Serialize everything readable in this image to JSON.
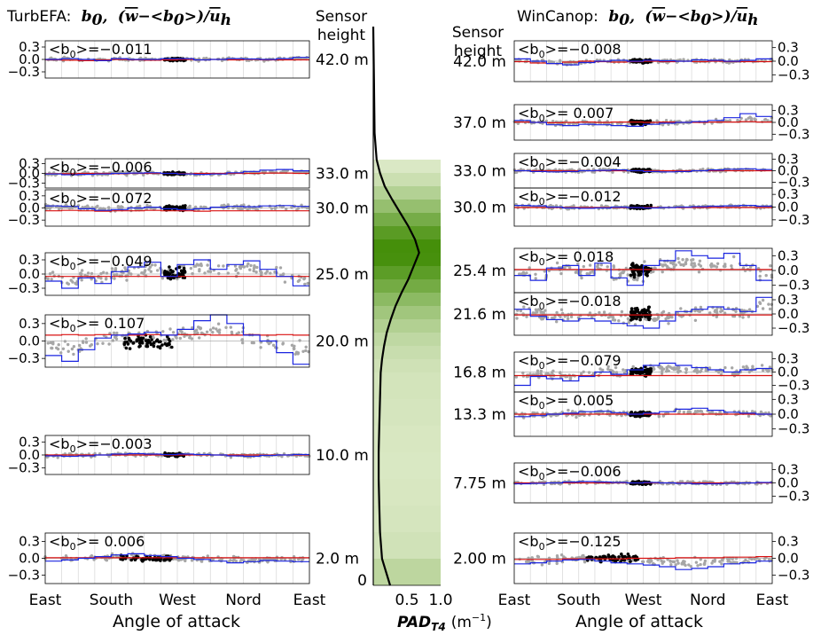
{
  "left_title": {
    "name": "TurbEFA:",
    "symbol": "b",
    "symbol_sub": "0",
    "sep": ",",
    "expr_open": "(",
    "expr_w": "w",
    "expr_mid": "−<b",
    "expr_sub0": "0",
    "expr_close": ">)/",
    "expr_u": "u",
    "expr_subh": "h"
  },
  "right_title": {
    "name": "WinCanop:",
    "symbol": "b",
    "symbol_sub": "0",
    "sep": ",",
    "expr_open": "(",
    "expr_w": "w",
    "expr_mid": "−<b",
    "expr_sub0": "0",
    "expr_close": ">)/",
    "expr_u": "u",
    "expr_subh": "h"
  },
  "sensor_label": {
    "line1": "Sensor",
    "line2": "height"
  },
  "x_axis": {
    "label": "Angle of attack",
    "tick_labels": [
      "East",
      "South",
      "West",
      "Nord",
      "East"
    ]
  },
  "center_axis": {
    "xlabel_main": "PAD",
    "xlabel_sub": "T4",
    "xlabel_unit": "(m",
    "xlabel_unit_sup": "−1",
    "xlabel_unit_close": ")",
    "tick_labels": [
      "0.5",
      "1.0"
    ],
    "zero_label": "0"
  },
  "colors": {
    "scatter_grey": "#a6a6a6",
    "scatter_black": "#000000",
    "mean_line_blue": "#1a24e0",
    "mean_line_red": "#d91010",
    "pad_profile": "#000000",
    "pad_green_dark": "#3d8a00",
    "pad_green_light": "#eef4dd"
  },
  "chart_data": [
    {
      "type": "scatter",
      "title": "TurbEFA",
      "xlabel": "Angle of attack",
      "y_ticks": [
        "0.3",
        "0.0",
        "−0.3"
      ],
      "panels": [
        {
          "height": "42.0 m",
          "b0_prefix": "<b",
          "b0_sub": "0",
          "b0_value": ">=−0.011",
          "spread": 0.05,
          "ylim": [
            -0.45,
            0.45
          ],
          "black_center": "West",
          "blue": [
            0.0,
            0.02,
            0.0,
            -0.03,
            0.02,
            0.0,
            0.0,
            0.02,
            0.02,
            -0.01,
            0.0,
            0.02,
            0.01,
            0.0,
            0.02,
            0.05
          ],
          "red": [
            -0.01,
            -0.02,
            -0.03,
            -0.01,
            0.0,
            -0.01,
            -0.02,
            -0.01,
            0.0,
            -0.01,
            0.0,
            -0.01,
            0.0,
            -0.01,
            -0.01,
            -0.01
          ]
        },
        {
          "height": "33.0 m",
          "b0_prefix": "<b",
          "b0_sub": "0",
          "b0_value": ">=−0.006",
          "spread": 0.07,
          "ylim": [
            -0.45,
            0.45
          ],
          "black_center": "West",
          "blue": [
            -0.02,
            -0.04,
            -0.03,
            -0.02,
            0.0,
            0.01,
            0.02,
            0.0,
            -0.02,
            -0.03,
            -0.02,
            0.02,
            0.06,
            0.1,
            0.12,
            0.08
          ],
          "red": [
            -0.01,
            -0.01,
            0.0,
            0.0,
            -0.01,
            0.0,
            0.0,
            0.0,
            -0.01,
            0.0,
            0.0,
            0.0,
            0.0,
            0.01,
            0.01,
            0.0
          ]
        },
        {
          "height": "30.0 m",
          "b0_prefix": "<b",
          "b0_sub": "0",
          "b0_value": ">=−0.072",
          "spread": 0.09,
          "ylim": [
            -0.45,
            0.45
          ],
          "black_center": "West",
          "blue": [
            0.05,
            0.04,
            -0.02,
            -0.06,
            -0.04,
            0.0,
            0.02,
            -0.02,
            -0.04,
            -0.02,
            0.02,
            0.04,
            0.03,
            0.05,
            0.06,
            0.04
          ],
          "red": [
            -0.07,
            -0.06,
            -0.07,
            -0.08,
            -0.07,
            -0.07,
            -0.06,
            -0.07,
            -0.07,
            -0.08,
            -0.07,
            -0.07,
            -0.07,
            -0.07,
            -0.07,
            -0.07
          ]
        },
        {
          "height": "25.0 m",
          "b0_prefix": "<b",
          "b0_sub": "0",
          "b0_value": ">=−0.049",
          "spread": 0.2,
          "ylim": [
            -0.45,
            0.45
          ],
          "black_center": "West",
          "blue": [
            -0.15,
            -0.3,
            -0.08,
            -0.2,
            0.05,
            0.15,
            0.25,
            -0.05,
            0.2,
            0.3,
            0.1,
            0.2,
            0.28,
            0.1,
            -0.05,
            -0.25
          ],
          "red": [
            -0.05,
            -0.05,
            -0.05,
            -0.05,
            -0.05,
            -0.05,
            -0.05,
            -0.05,
            -0.05,
            -0.05,
            -0.05,
            -0.05,
            -0.05,
            -0.05,
            -0.05,
            -0.05
          ]
        },
        {
          "height": "20.0 m",
          "b0_prefix": "<b",
          "b0_sub": "0",
          "b0_value": ">= 0.107",
          "spread": 0.2,
          "ylim": [
            -0.45,
            0.45
          ],
          "black_center": "South-West",
          "blue": [
            -0.25,
            -0.35,
            -0.15,
            0.05,
            0.1,
            0.12,
            0.15,
            0.1,
            0.2,
            0.35,
            0.45,
            0.3,
            0.1,
            0.0,
            -0.2,
            -0.4
          ],
          "red": [
            0.1,
            0.11,
            0.1,
            0.11,
            0.1,
            0.1,
            0.11,
            0.1,
            0.11,
            0.11,
            0.1,
            0.1,
            0.11,
            0.1,
            0.11,
            0.1
          ]
        },
        {
          "height": "10.0 m",
          "b0_prefix": "<b",
          "b0_sub": "0",
          "b0_value": ">=−0.003",
          "spread": 0.06,
          "ylim": [
            -0.45,
            0.45
          ],
          "black_center": "West",
          "blue": [
            -0.02,
            -0.03,
            -0.02,
            0.0,
            0.02,
            0.03,
            0.02,
            0.01,
            0.02,
            0.01,
            0.0,
            -0.02,
            -0.03,
            -0.01,
            0.0,
            0.01
          ],
          "red": [
            0.0,
            0.0,
            0.0,
            0.0,
            0.0,
            0.0,
            0.0,
            0.0,
            0.0,
            0.0,
            0.0,
            0.0,
            0.0,
            0.0,
            0.0,
            0.0
          ]
        },
        {
          "height": "2.0 m",
          "b0_prefix": "<b",
          "b0_sub": "0",
          "b0_value": ">= 0.006",
          "spread": 0.08,
          "ylim": [
            -0.45,
            0.45
          ],
          "black_center": "South-West",
          "blue": [
            -0.05,
            -0.03,
            0.0,
            0.03,
            0.06,
            0.08,
            0.05,
            0.03,
            0.0,
            -0.02,
            -0.05,
            -0.08,
            -0.06,
            -0.04,
            -0.05,
            -0.06
          ],
          "red": [
            0.01,
            0.01,
            0.01,
            0.01,
            0.01,
            0.01,
            0.01,
            0.01,
            0.01,
            0.01,
            0.01,
            0.01,
            0.01,
            0.01,
            0.01,
            0.01
          ]
        }
      ]
    },
    {
      "type": "line",
      "title": "",
      "xlabel": "PAD_T4 (m−1)",
      "xlim": [
        0,
        1.0
      ],
      "x_ticks": [
        0.5,
        1.0
      ],
      "heights": [
        0,
        2,
        4,
        6,
        8,
        10,
        12,
        14,
        16,
        17,
        18,
        19,
        20,
        21,
        22,
        23,
        24,
        25,
        26,
        27,
        28,
        29,
        30,
        31,
        32,
        34,
        38,
        42
      ],
      "pad": [
        0.25,
        0.13,
        0.1,
        0.09,
        0.08,
        0.08,
        0.09,
        0.1,
        0.11,
        0.13,
        0.16,
        0.2,
        0.26,
        0.33,
        0.42,
        0.52,
        0.6,
        0.68,
        0.62,
        0.52,
        0.4,
        0.28,
        0.17,
        0.1,
        0.05,
        0.02,
        0.01,
        0.0
      ],
      "y_zero_label": "0"
    },
    {
      "type": "scatter",
      "title": "WinCanop",
      "xlabel": "Angle of attack",
      "y_ticks": [
        "0.3",
        "0.0",
        "−0.3"
      ],
      "panels": [
        {
          "height": "42.0 m",
          "b0_prefix": "<b",
          "b0_sub": "0",
          "b0_value": ">=−0.008",
          "spread": 0.06,
          "ylim": [
            -0.45,
            0.45
          ],
          "black_center": "West",
          "blue": [
            0.05,
            0.0,
            -0.05,
            -0.08,
            -0.03,
            0.0,
            0.02,
            0.0,
            0.02,
            0.01,
            0.0,
            0.03,
            0.02,
            0.0,
            0.02,
            0.05
          ],
          "red": [
            -0.01,
            -0.04,
            -0.05,
            -0.02,
            0.0,
            -0.01,
            -0.02,
            -0.01,
            0.0,
            -0.01,
            0.0,
            -0.01,
            0.0,
            -0.01,
            -0.01,
            -0.01
          ]
        },
        {
          "height": "37.0 m",
          "b0_prefix": "<b",
          "b0_sub": "0",
          "b0_value": ">= 0.007",
          "spread": 0.08,
          "ylim": [
            -0.45,
            0.45
          ],
          "black_center": "West",
          "blue": [
            0.05,
            0.0,
            -0.06,
            -0.08,
            -0.05,
            -0.06,
            -0.08,
            -0.1,
            -0.05,
            -0.02,
            0.0,
            0.02,
            0.05,
            0.12,
            0.22,
            0.15
          ],
          "red": [
            0.01,
            0.0,
            -0.01,
            0.0,
            0.01,
            0.0,
            0.01,
            0.01,
            0.0,
            0.01,
            0.0,
            0.0,
            0.01,
            0.01,
            0.02,
            0.01
          ]
        },
        {
          "height": "33.0 m",
          "b0_prefix": "<b",
          "b0_sub": "0",
          "b0_value": ">=−0.004",
          "spread": 0.06,
          "ylim": [
            -0.45,
            0.45
          ],
          "black_center": "West",
          "blue": [
            0.0,
            -0.02,
            -0.03,
            -0.02,
            0.0,
            0.01,
            0.02,
            0.0,
            -0.02,
            -0.03,
            -0.02,
            0.0,
            0.02,
            0.04,
            0.05,
            0.03
          ],
          "red": [
            0.0,
            0.0,
            0.0,
            0.0,
            0.0,
            0.0,
            0.0,
            0.0,
            0.0,
            0.0,
            0.0,
            0.0,
            0.0,
            0.0,
            0.0,
            0.0
          ]
        },
        {
          "height": "30.0 m",
          "b0_prefix": "<b",
          "b0_sub": "0",
          "b0_value": ">=−0.012",
          "spread": 0.06,
          "ylim": [
            -0.45,
            0.45
          ],
          "black_center": "West",
          "blue": [
            0.04,
            0.03,
            0.0,
            -0.02,
            -0.03,
            -0.02,
            0.0,
            -0.01,
            -0.02,
            -0.01,
            0.0,
            0.01,
            0.02,
            0.03,
            0.04,
            0.02
          ],
          "red": [
            -0.01,
            -0.01,
            -0.01,
            -0.01,
            -0.01,
            -0.01,
            -0.01,
            -0.01,
            -0.01,
            -0.01,
            -0.01,
            -0.01,
            -0.01,
            -0.01,
            -0.01,
            -0.01
          ]
        },
        {
          "height": "25.4 m",
          "b0_prefix": "<b",
          "b0_sub": "0",
          "b0_value": ">= 0.018",
          "spread": 0.2,
          "ylim": [
            -0.45,
            0.45
          ],
          "black_center": "West",
          "blue": [
            -0.1,
            -0.2,
            0.05,
            0.1,
            -0.1,
            0.15,
            -0.15,
            -0.3,
            0.1,
            0.2,
            0.4,
            0.3,
            0.25,
            0.35,
            0.1,
            -0.2
          ],
          "red": [
            0.02,
            0.02,
            0.02,
            0.02,
            0.02,
            0.02,
            0.02,
            0.02,
            0.02,
            0.02,
            0.02,
            0.02,
            0.02,
            0.02,
            0.02,
            0.02
          ]
        },
        {
          "height": "21.6 m",
          "b0_prefix": "<b",
          "b0_sub": "0",
          "b0_value": ">=−0.018",
          "spread": 0.2,
          "ylim": [
            -0.45,
            0.45
          ],
          "black_center": "West",
          "blue": [
            0.1,
            -0.05,
            -0.12,
            -0.15,
            -0.1,
            -0.15,
            -0.2,
            -0.25,
            -0.3,
            -0.15,
            0.05,
            0.1,
            0.15,
            0.1,
            0.05,
            0.35
          ],
          "red": [
            -0.02,
            -0.02,
            -0.02,
            -0.02,
            -0.02,
            -0.02,
            -0.02,
            -0.02,
            -0.02,
            -0.02,
            -0.02,
            -0.02,
            -0.02,
            -0.02,
            -0.02,
            -0.02
          ]
        },
        {
          "height": "16.8 m",
          "b0_prefix": "<b",
          "b0_sub": "0",
          "b0_value": ">=−0.079",
          "spread": 0.15,
          "ylim": [
            -0.45,
            0.45
          ],
          "black_center": "West",
          "blue": [
            -0.3,
            -0.1,
            -0.15,
            -0.2,
            -0.1,
            0.0,
            -0.05,
            0.05,
            0.15,
            0.2,
            0.15,
            0.1,
            0.05,
            0.0,
            0.05,
            0.08
          ],
          "red": [
            -0.08,
            -0.08,
            -0.08,
            -0.08,
            -0.08,
            -0.08,
            -0.08,
            -0.08,
            -0.08,
            -0.08,
            -0.08,
            -0.08,
            -0.08,
            -0.08,
            -0.08,
            -0.08
          ]
        },
        {
          "height": "13.3 m",
          "b0_prefix": "<b",
          "b0_sub": "0",
          "b0_value": ">= 0.005",
          "spread": 0.08,
          "ylim": [
            -0.45,
            0.45
          ],
          "black_center": "West",
          "blue": [
            -0.05,
            -0.03,
            0.0,
            0.02,
            0.05,
            0.06,
            0.03,
            0.0,
            0.02,
            0.05,
            0.1,
            0.12,
            0.08,
            0.04,
            0.02,
            0.0
          ],
          "red": [
            0.0,
            0.0,
            0.0,
            0.0,
            0.0,
            0.0,
            0.0,
            0.0,
            0.0,
            0.0,
            0.0,
            0.0,
            0.0,
            0.0,
            0.0,
            0.0
          ]
        },
        {
          "height": "7.75 m",
          "b0_prefix": "<b",
          "b0_sub": "0",
          "b0_value": ">=−0.006",
          "spread": 0.05,
          "ylim": [
            -0.45,
            0.45
          ],
          "black_center": "West",
          "blue": [
            -0.02,
            -0.01,
            0.0,
            0.02,
            0.03,
            0.02,
            0.01,
            0.0,
            0.01,
            0.0,
            -0.01,
            -0.02,
            -0.02,
            -0.01,
            0.0,
            0.01
          ],
          "red": [
            0.0,
            0.0,
            0.0,
            0.0,
            0.0,
            0.0,
            0.0,
            0.0,
            0.0,
            0.0,
            0.0,
            0.0,
            0.0,
            0.0,
            0.0,
            0.0
          ]
        },
        {
          "height": "2.00 m",
          "b0_prefix": "<b",
          "b0_sub": "0",
          "b0_value": ">=−0.125",
          "spread": 0.1,
          "ylim": [
            -0.45,
            0.45
          ],
          "black_center": "South-West",
          "blue": [
            -0.1,
            -0.08,
            -0.05,
            -0.03,
            -0.02,
            -0.05,
            -0.08,
            -0.1,
            -0.12,
            -0.15,
            -0.2,
            -0.18,
            -0.15,
            -0.1,
            -0.08,
            -0.05
          ],
          "red": [
            -0.02,
            -0.02,
            -0.02,
            -0.01,
            -0.01,
            -0.01,
            -0.01,
            0.0,
            0.0,
            0.0,
            0.01,
            0.01,
            0.01,
            0.02,
            0.02,
            0.03
          ]
        }
      ]
    }
  ]
}
